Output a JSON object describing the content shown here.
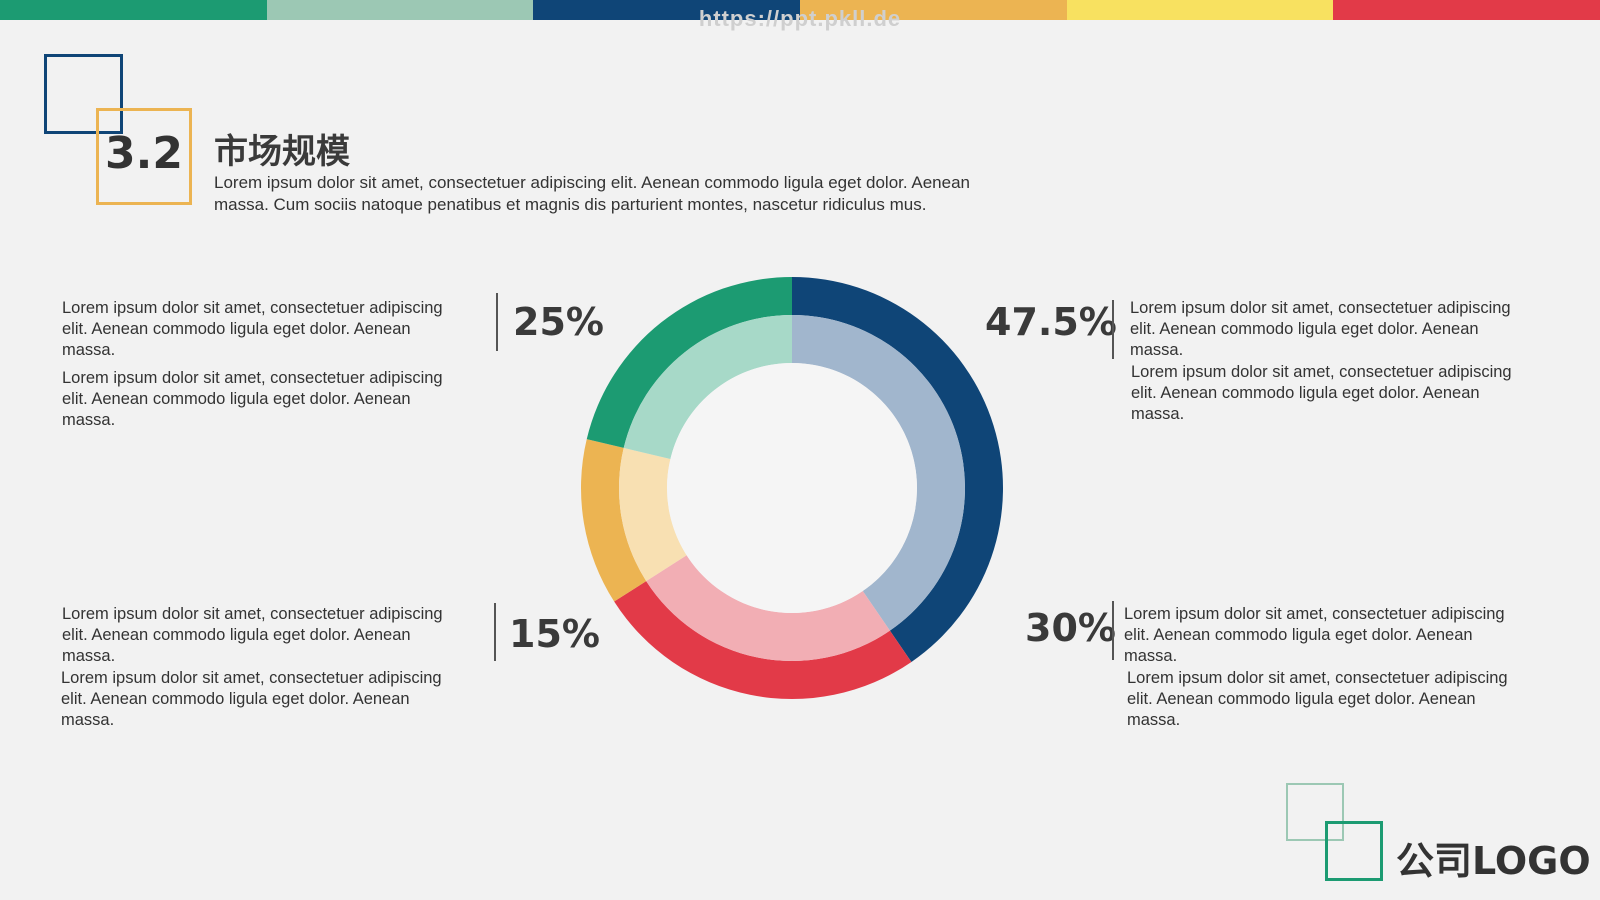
{
  "top_bar_colors": [
    "#1c9b72",
    "#9cc8b4",
    "#0f4577",
    "#ecb452",
    "#f8e160",
    "#e23a48"
  ],
  "watermark": "https://ppt.pkll.de",
  "header": {
    "section_number": "3.2",
    "title": "市场规模",
    "subtitle_line1": "Lorem ipsum dolor sit amet, consectetuer adipiscing elit. Aenean commodo ligula eget dolor. Aenean",
    "subtitle_line2": "massa. Cum sociis natoque penatibus et magnis dis parturient montes, nascetur ridiculus mus."
  },
  "blocks": {
    "top_left": {
      "pct": "25%",
      "p1": [
        "Lorem ipsum dolor sit amet, consectetuer adipiscing",
        "elit. Aenean commodo ligula eget dolor. Aenean",
        "massa."
      ],
      "p2": [
        "Lorem ipsum dolor sit amet, consectetuer adipiscing",
        "elit. Aenean commodo ligula eget dolor. Aenean",
        "massa."
      ]
    },
    "top_right": {
      "pct": "47.5%",
      "p1": [
        "Lorem ipsum dolor sit amet, consectetuer adipiscing",
        "elit. Aenean commodo ligula eget dolor. Aenean",
        "massa."
      ],
      "p2": [
        "Lorem ipsum dolor sit amet, consectetuer adipiscing",
        "elit. Aenean commodo ligula eget dolor. Aenean",
        "massa."
      ]
    },
    "bottom_left": {
      "pct": "15%",
      "p1": [
        "Lorem ipsum dolor sit amet, consectetuer adipiscing",
        "elit. Aenean commodo ligula eget dolor. Aenean",
        "massa."
      ],
      "p2": [
        "Lorem ipsum dolor sit amet, consectetuer adipiscing",
        "elit. Aenean commodo ligula eget dolor. Aenean",
        "massa."
      ]
    },
    "bottom_right": {
      "pct": "30%",
      "p1": [
        "Lorem ipsum dolor sit amet, consectetuer adipiscing",
        "elit. Aenean commodo ligula eget dolor. Aenean",
        "massa."
      ],
      "p2": [
        "Lorem ipsum dolor sit amet, consectetuer adipiscing",
        "elit. Aenean commodo ligula eget dolor. Aenean",
        "massa."
      ]
    }
  },
  "chart_data": {
    "type": "pie",
    "variant": "double-ring donut",
    "slices": [
      {
        "label": "47.5%",
        "value": 47.5,
        "outer_color": "#0f4577",
        "inner_color": "#a1b6cd"
      },
      {
        "label": "30%",
        "value": 30,
        "outer_color": "#e23a48",
        "inner_color": "#f2aeb4"
      },
      {
        "label": "15%",
        "value": 15,
        "outer_color": "#ecb452",
        "inner_color": "#f8e0b2"
      },
      {
        "label": "25%",
        "value": 25,
        "outer_color": "#1c9b72",
        "inner_color": "#a7d9c8"
      }
    ],
    "start": "top (12 o'clock)",
    "direction": "clockwise",
    "center_color": "#f5f5f5"
  },
  "logo": {
    "text": "公司LOGO"
  }
}
